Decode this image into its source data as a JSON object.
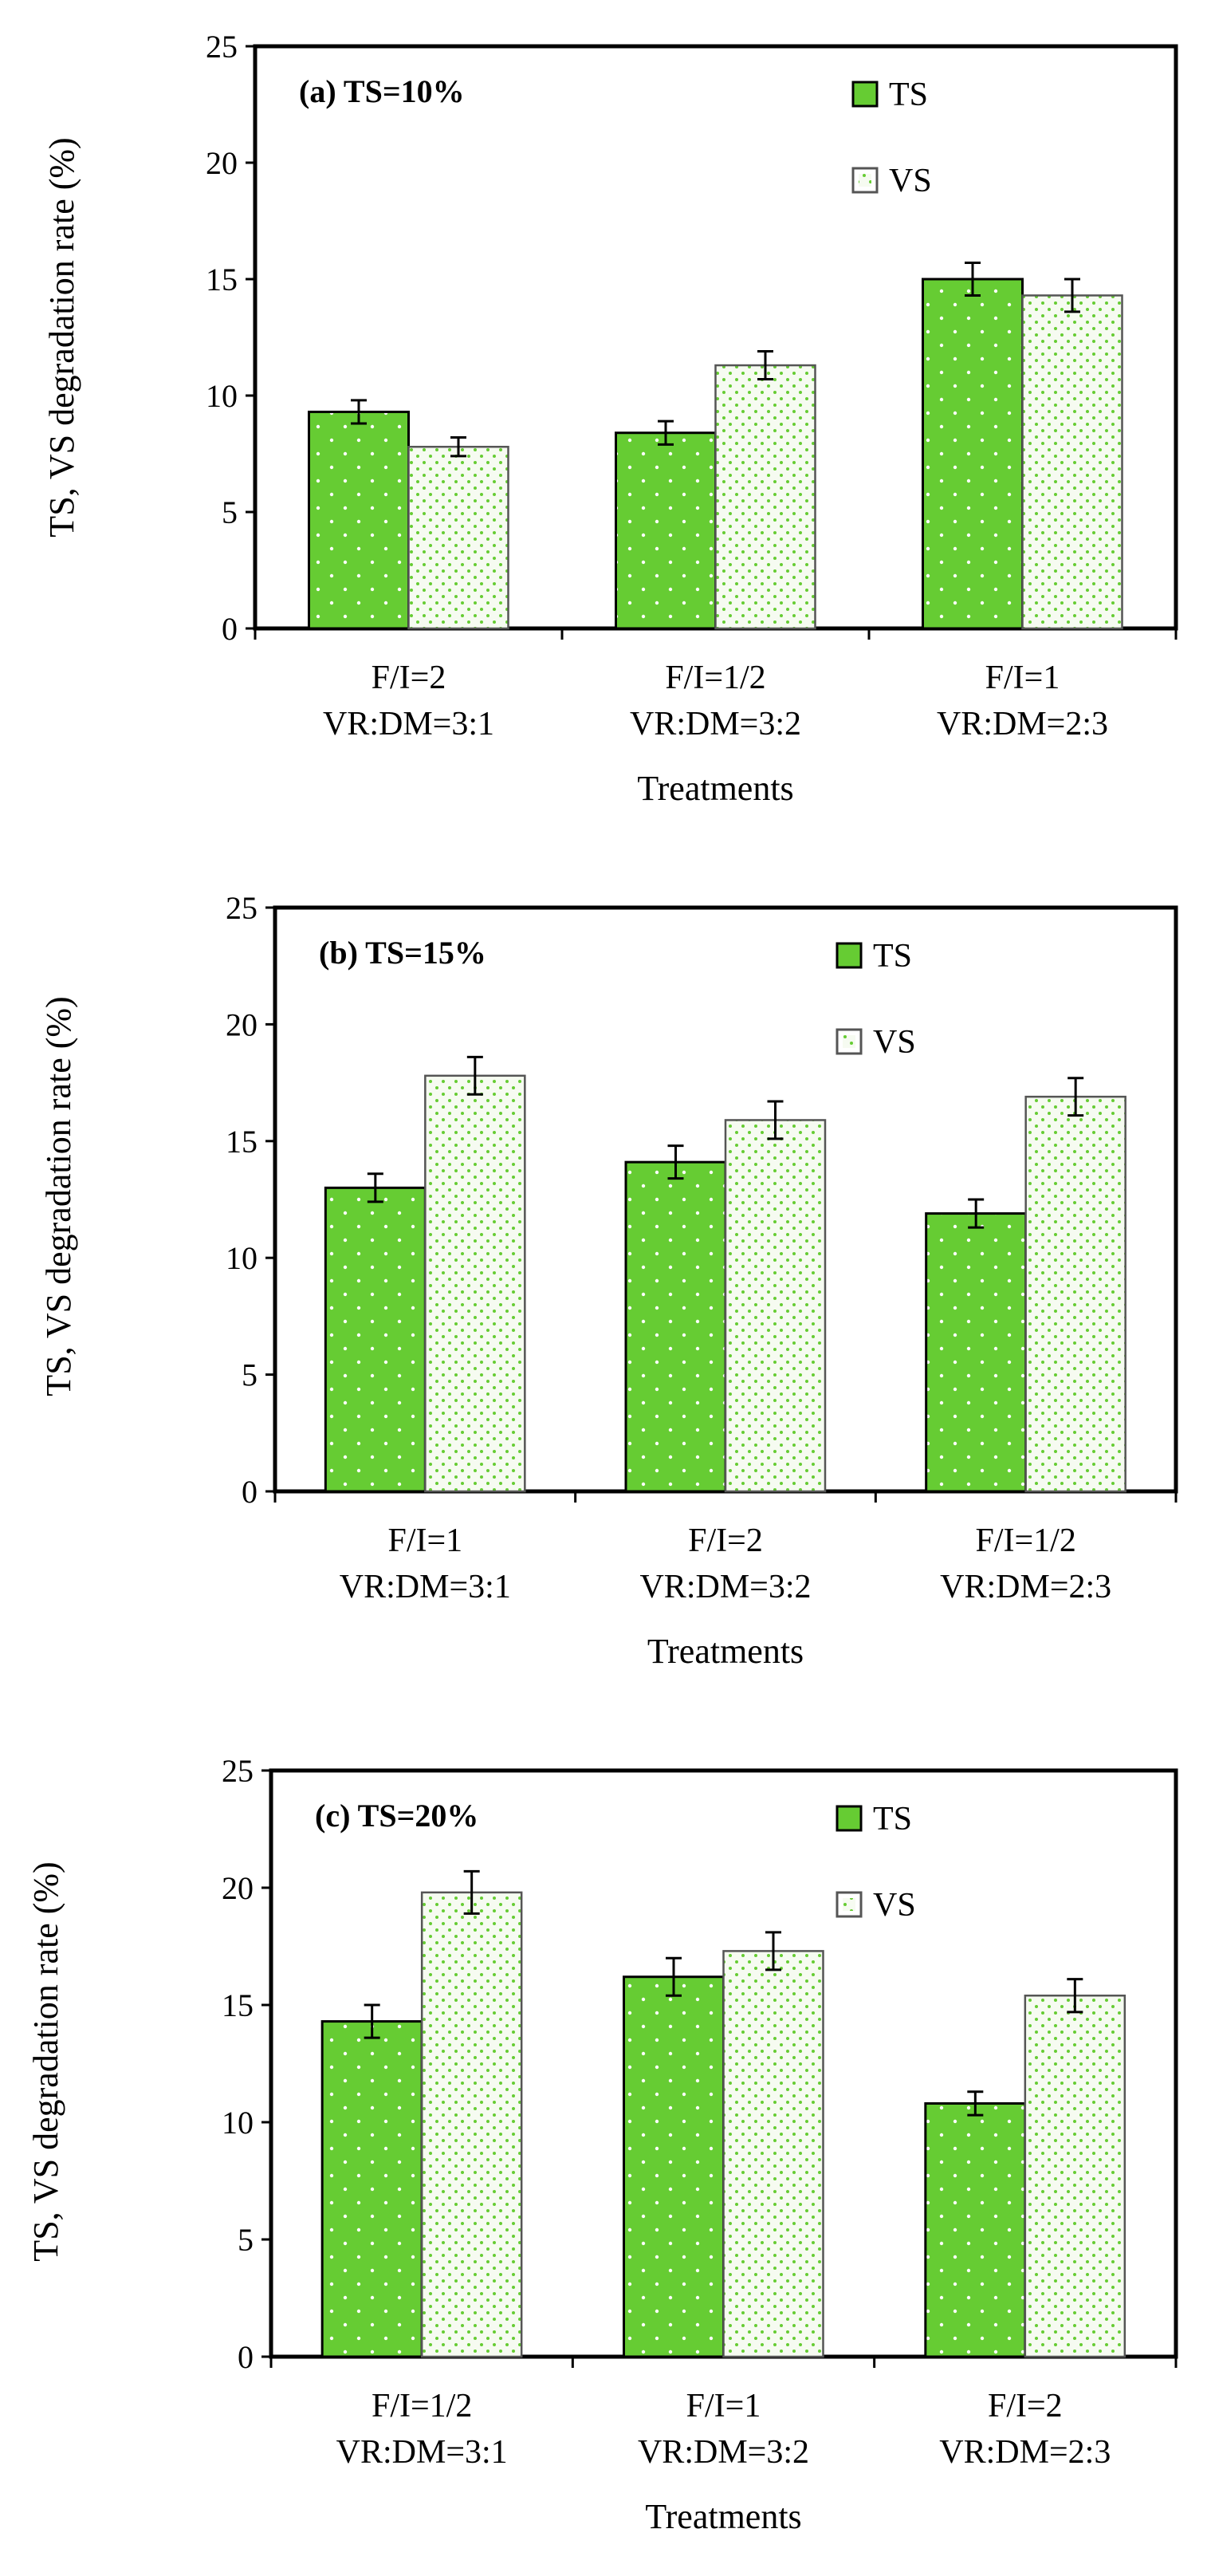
{
  "colors": {
    "ts_fill": "#66cc33",
    "vs_fill": "#f6fbf1",
    "vs_dots": "#66cc33",
    "outline": "#000000",
    "vs_outline": "#555555"
  },
  "chart_data": [
    {
      "type": "bar",
      "title": "(a) TS=10%",
      "xlabel": "Treatments",
      "ylabel": "TS, VS degradation rate (%)",
      "ylim": [
        0,
        25
      ],
      "yticks": [
        "0",
        "5",
        "10",
        "15",
        "20",
        "25"
      ],
      "categories": [
        [
          "F/I=2",
          "VR:DM=3:1"
        ],
        [
          "F/I=1/2",
          "VR:DM=3:2"
        ],
        [
          "F/I=1",
          "VR:DM=2:3"
        ]
      ],
      "series": [
        {
          "name": "TS",
          "values": [
            9.3,
            8.4,
            15.0
          ],
          "errors": [
            0.5,
            0.5,
            0.7
          ]
        },
        {
          "name": "VS",
          "values": [
            7.8,
            11.3,
            14.3
          ],
          "errors": [
            0.4,
            0.6,
            0.7
          ]
        }
      ],
      "legend": "top-right",
      "grid": false
    },
    {
      "type": "bar",
      "title": "(b) TS=15%",
      "xlabel": "Treatments",
      "ylabel": "TS, VS degradation rate (%)",
      "ylim": [
        0,
        25
      ],
      "yticks": [
        "0",
        "5",
        "10",
        "15",
        "20",
        "25"
      ],
      "categories": [
        [
          "F/I=1",
          "VR:DM=3:1"
        ],
        [
          "F/I=2",
          "VR:DM=3:2"
        ],
        [
          "F/I=1/2",
          "VR:DM=2:3"
        ]
      ],
      "series": [
        {
          "name": "TS",
          "values": [
            13.0,
            14.1,
            11.9
          ],
          "errors": [
            0.6,
            0.7,
            0.6
          ]
        },
        {
          "name": "VS",
          "values": [
            17.8,
            15.9,
            16.9
          ],
          "errors": [
            0.8,
            0.8,
            0.8
          ]
        }
      ],
      "legend": "top-right",
      "grid": false
    },
    {
      "type": "bar",
      "title": "(c) TS=20%",
      "xlabel": "Treatments",
      "ylabel": "TS, VS degradation rate (%)",
      "ylim": [
        0,
        25
      ],
      "yticks": [
        "0",
        "5",
        "10",
        "15",
        "20",
        "25"
      ],
      "categories": [
        [
          "F/I=1/2",
          "VR:DM=3:1"
        ],
        [
          "F/I=1",
          "VR:DM=3:2"
        ],
        [
          "F/I=2",
          "VR:DM=2:3"
        ]
      ],
      "series": [
        {
          "name": "TS",
          "values": [
            14.3,
            16.2,
            10.8
          ],
          "errors": [
            0.7,
            0.8,
            0.5
          ]
        },
        {
          "name": "VS",
          "values": [
            19.8,
            17.3,
            15.4
          ],
          "errors": [
            0.9,
            0.8,
            0.7
          ]
        }
      ],
      "legend": "top-right",
      "grid": false
    }
  ]
}
